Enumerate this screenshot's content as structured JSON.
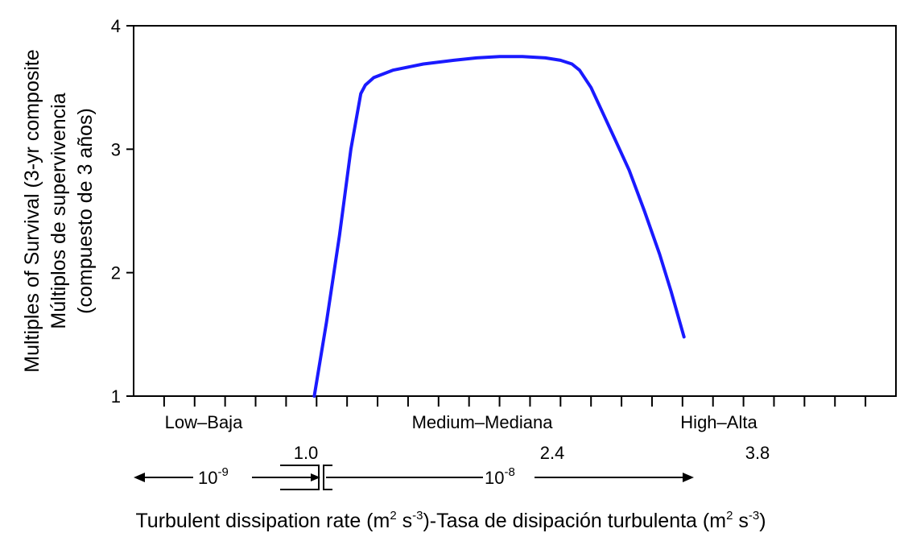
{
  "chart_data": {
    "type": "line",
    "ylabel_lines": [
      "Multiples of Survival (3-yr composite",
      "Múltiplos de supervivencia",
      "(compuesto de 3 años)"
    ],
    "ylim": [
      1,
      4
    ],
    "yticks": [
      "1",
      "2",
      "3",
      "4"
    ],
    "xlim": [
      0,
      1
    ],
    "x_minor_tick_count": 24,
    "categories": [
      "Low–Baja",
      "Medium–Mediana",
      "High–Alta"
    ],
    "category_values": [
      "1.0",
      "2.4",
      "3.8"
    ],
    "magnitude_labels": [
      {
        "base": "10",
        "exp": "-9"
      },
      {
        "base": "10",
        "exp": "-8"
      }
    ],
    "xtitle": {
      "part1": "Turbulent dissipation rate (m",
      "exp1": "2",
      "part2": " s",
      "exp2": "-3",
      "part3": ")-Tasa de disipación turbulenta  (m",
      "exp3": "2",
      "part4": " s",
      "exp4": "-3",
      "part5": ")"
    },
    "series": [
      {
        "color": "#1a1aff",
        "points": [
          [
            0.237,
            1.0
          ],
          [
            0.253,
            1.6
          ],
          [
            0.27,
            2.3
          ],
          [
            0.285,
            3.0
          ],
          [
            0.298,
            3.45
          ],
          [
            0.304,
            3.52
          ],
          [
            0.315,
            3.58
          ],
          [
            0.34,
            3.64
          ],
          [
            0.38,
            3.69
          ],
          [
            0.42,
            3.72
          ],
          [
            0.45,
            3.74
          ],
          [
            0.48,
            3.75
          ],
          [
            0.51,
            3.75
          ],
          [
            0.54,
            3.74
          ],
          [
            0.56,
            3.72
          ],
          [
            0.575,
            3.69
          ],
          [
            0.585,
            3.64
          ],
          [
            0.6,
            3.5
          ],
          [
            0.615,
            3.3
          ],
          [
            0.63,
            3.1
          ],
          [
            0.65,
            2.83
          ],
          [
            0.67,
            2.5
          ],
          [
            0.69,
            2.15
          ],
          [
            0.705,
            1.85
          ],
          [
            0.722,
            1.48
          ]
        ]
      }
    ]
  }
}
